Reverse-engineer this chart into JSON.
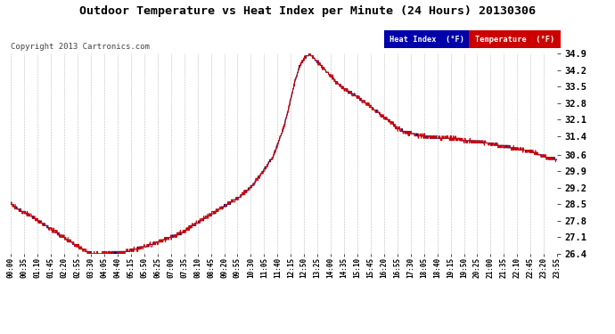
{
  "title": "Outdoor Temperature vs Heat Index per Minute (24 Hours) 20130306",
  "copyright": "Copyright 2013 Cartronics.com",
  "background_color": "#ffffff",
  "plot_bg_color": "#ffffff",
  "grid_color": "#bbbbbb",
  "temp_color": "#cc0000",
  "heat_color": "#000080",
  "ylim": [
    26.4,
    34.9
  ],
  "yticks": [
    26.4,
    27.1,
    27.8,
    28.5,
    29.2,
    29.9,
    30.6,
    31.4,
    32.1,
    32.8,
    33.5,
    34.2,
    34.9
  ],
  "xtick_labels": [
    "00:00",
    "00:35",
    "01:10",
    "01:45",
    "02:20",
    "02:55",
    "03:30",
    "04:05",
    "04:40",
    "05:15",
    "05:50",
    "06:25",
    "07:00",
    "07:35",
    "08:10",
    "08:45",
    "09:20",
    "09:55",
    "10:30",
    "11:05",
    "11:40",
    "12:15",
    "12:50",
    "13:25",
    "14:00",
    "14:35",
    "15:10",
    "15:45",
    "16:20",
    "16:55",
    "17:30",
    "18:05",
    "18:40",
    "19:15",
    "19:50",
    "20:25",
    "21:00",
    "21:35",
    "22:10",
    "22:45",
    "23:20",
    "23:55"
  ],
  "keypoints_x": [
    0,
    0.3,
    0.7,
    1.2,
    2.0,
    2.8,
    3.3,
    3.6,
    4.0,
    4.5,
    5.0,
    5.5,
    6.0,
    6.5,
    7.0,
    7.5,
    8.0,
    8.5,
    9.0,
    9.5,
    10.0,
    10.5,
    11.0,
    11.5,
    12.0,
    12.3,
    12.5,
    12.7,
    12.9,
    13.1,
    13.5,
    14.0,
    14.5,
    15.0,
    15.3,
    15.6,
    16.0,
    16.4,
    16.8,
    17.0,
    17.5,
    18.0,
    18.5,
    19.0,
    19.5,
    20.0,
    20.5,
    21.0,
    21.5,
    22.0,
    22.5,
    23.0,
    23.5,
    24.0
  ],
  "keypoints_y": [
    28.5,
    28.3,
    28.1,
    27.8,
    27.3,
    26.8,
    26.5,
    26.4,
    26.4,
    26.45,
    26.5,
    26.6,
    26.75,
    26.9,
    27.1,
    27.3,
    27.6,
    27.9,
    28.2,
    28.5,
    28.8,
    29.2,
    29.8,
    30.5,
    31.8,
    33.0,
    33.8,
    34.4,
    34.7,
    34.9,
    34.5,
    34.0,
    33.5,
    33.2,
    33.0,
    32.8,
    32.5,
    32.2,
    31.9,
    31.7,
    31.5,
    31.4,
    31.35,
    31.3,
    31.3,
    31.2,
    31.15,
    31.1,
    31.0,
    30.9,
    30.8,
    30.7,
    30.5,
    30.4
  ]
}
